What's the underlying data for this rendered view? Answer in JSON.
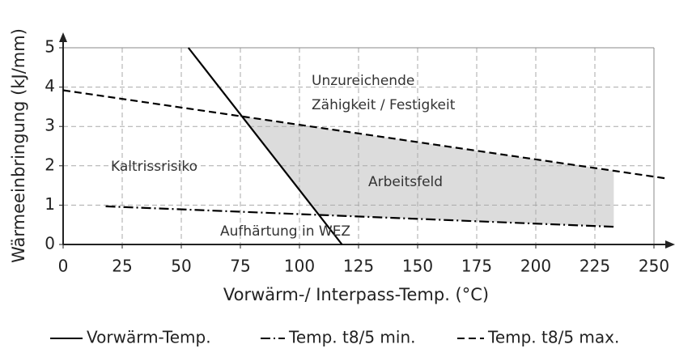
{
  "chart_data": {
    "type": "line",
    "xlabel": "Vorwärm-/ Interpass-Temp. (°C)",
    "ylabel": "Wärmeeinbringung (kJ/mm)",
    "xlim": [
      0,
      250
    ],
    "xticks": [
      0,
      25,
      50,
      75,
      100,
      125,
      150,
      175,
      200,
      225,
      250
    ],
    "ylim": [
      0,
      5
    ],
    "yticks": [
      0,
      1,
      2,
      3,
      4,
      5
    ],
    "grid": true,
    "series": [
      {
        "name": "Vorwärm-Temp.",
        "color": "#000000",
        "dash": "solid",
        "x": [
          53,
          118
        ],
        "values": [
          5,
          0
        ]
      },
      {
        "name": "Temp. t8/5 min.",
        "color": "#000000",
        "dash": "dashdot",
        "x": [
          18,
          233
        ],
        "values": [
          0.97,
          0.45
        ]
      },
      {
        "name": "Temp. t8/5 max.",
        "color": "#000000",
        "dash": "dashed",
        "x": [
          0,
          255
        ],
        "values": [
          3.92,
          1.68
        ]
      }
    ],
    "annotations": [
      "Unzureichende",
      "Zähigkeit / Festigkeit",
      "Kaltrissrisiko",
      "Arbeitsfeld",
      "Aufhärtung in WEZ"
    ]
  }
}
